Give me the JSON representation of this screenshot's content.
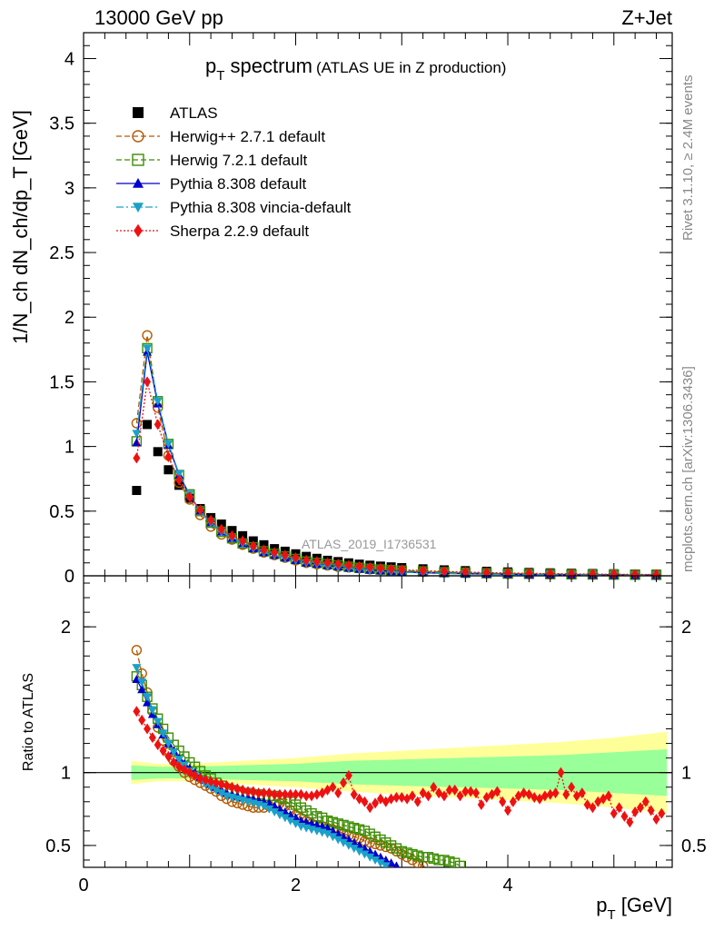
{
  "header": {
    "left": "13000 GeV pp",
    "right": "Z+Jet"
  },
  "side_labels": {
    "rivet": "Rivet 3.1.10, ≥ 2.4M events",
    "mcplots": "mcplots.cern.ch [arXiv:1306.3436]"
  },
  "watermark": "ATLAS_2019_I1736531",
  "chart_data": [
    {
      "type": "scatter",
      "title_main": "p",
      "title_sub": "T",
      "title_rest": " spectrum",
      "title_note": "(ATLAS UE in Z production)",
      "ylabel": "1/N_ch dN_ch/dp_T [GeV]",
      "ylim": [
        0,
        4.2
      ],
      "xlim": [
        0,
        5.55
      ],
      "y_ticks": [
        "0",
        "0.5",
        "1",
        "1.5",
        "2",
        "2.5",
        "3",
        "3.5",
        "4"
      ],
      "legend_placement": "top-left",
      "x": [
        0.5,
        0.6,
        0.7,
        0.8,
        0.9,
        1.0,
        1.1,
        1.2,
        1.3,
        1.4,
        1.5,
        1.6,
        1.7,
        1.8,
        1.9,
        2.0,
        2.1,
        2.2,
        2.3,
        2.4,
        2.5,
        2.6,
        2.7,
        2.8,
        2.9,
        3.0,
        3.2,
        3.4,
        3.6,
        3.8,
        4.0,
        4.2,
        4.4,
        4.6,
        4.8,
        5.0,
        5.2,
        5.4
      ],
      "series": [
        {
          "name": "ATLAS",
          "color": "#000000",
          "marker": "square-filled",
          "line": "none",
          "values": [
            0.66,
            1.17,
            0.96,
            0.82,
            0.7,
            0.6,
            0.52,
            0.45,
            0.4,
            0.35,
            0.31,
            0.27,
            0.24,
            0.21,
            0.19,
            0.17,
            0.15,
            0.135,
            0.12,
            0.11,
            0.1,
            0.09,
            0.082,
            0.075,
            0.069,
            0.063,
            0.054,
            0.046,
            0.04,
            0.035,
            0.03,
            0.026,
            0.023,
            0.02,
            0.018,
            0.016,
            0.014,
            0.013
          ]
        },
        {
          "name": "Herwig++ 2.7.1 default",
          "color": "#b35a00",
          "marker": "circle-open",
          "line": "dashed",
          "values": [
            1.18,
            1.86,
            1.3,
            0.93,
            0.72,
            0.59,
            0.47,
            0.38,
            0.32,
            0.28,
            0.24,
            0.21,
            0.18,
            0.16,
            0.14,
            0.12,
            0.1,
            0.09,
            0.08,
            0.07,
            0.065,
            0.058,
            0.05,
            0.045,
            0.04,
            0.036,
            0.03,
            0.025,
            0.021,
            0.018,
            0.015,
            0.013,
            0.011,
            0.01,
            0.009,
            0.008,
            0.007,
            0.006
          ]
        },
        {
          "name": "Herwig 7.2.1 default",
          "color": "#3c8d00",
          "marker": "square-open",
          "line": "dashed",
          "values": [
            1.04,
            1.76,
            1.35,
            1.02,
            0.78,
            0.63,
            0.5,
            0.41,
            0.34,
            0.29,
            0.25,
            0.22,
            0.19,
            0.17,
            0.15,
            0.13,
            0.11,
            0.1,
            0.09,
            0.08,
            0.07,
            0.062,
            0.055,
            0.049,
            0.044,
            0.04,
            0.034,
            0.028,
            0.024,
            0.02,
            0.017,
            0.015,
            0.013,
            0.011,
            0.01,
            0.009,
            0.008,
            0.007
          ]
        },
        {
          "name": "Pythia 8.308 default",
          "color": "#0000cc",
          "marker": "triangle-up-filled",
          "line": "solid",
          "values": [
            1.03,
            1.73,
            1.33,
            1.01,
            0.78,
            0.62,
            0.5,
            0.41,
            0.34,
            0.29,
            0.25,
            0.21,
            0.18,
            0.16,
            0.14,
            0.12,
            0.1,
            0.09,
            0.08,
            0.07,
            0.06,
            0.052,
            0.045,
            0.039,
            0.034,
            0.03,
            0.024,
            0.019,
            0.016,
            0.013,
            0.011,
            0.009,
            0.008,
            0.007,
            0.006,
            0.005,
            0.0045,
            0.004
          ]
        },
        {
          "name": "Pythia 8.308 vincia-default",
          "color": "#1ba1c8",
          "marker": "triangle-down-filled",
          "line": "dashdot",
          "values": [
            1.1,
            1.76,
            1.35,
            1.02,
            0.79,
            0.63,
            0.5,
            0.41,
            0.34,
            0.29,
            0.25,
            0.21,
            0.18,
            0.16,
            0.14,
            0.12,
            0.1,
            0.09,
            0.075,
            0.066,
            0.058,
            0.05,
            0.043,
            0.037,
            0.032,
            0.028,
            0.022,
            0.018,
            0.015,
            0.012,
            0.01,
            0.0085,
            0.0075,
            0.0065,
            0.0055,
            0.0048,
            0.0042,
            0.0037
          ]
        },
        {
          "name": "Sherpa 2.2.9 default",
          "color": "#ee1111",
          "marker": "diamond-filled",
          "line": "dotted",
          "values": [
            0.91,
            1.5,
            1.17,
            0.92,
            0.74,
            0.61,
            0.51,
            0.43,
            0.36,
            0.31,
            0.27,
            0.23,
            0.2,
            0.18,
            0.16,
            0.14,
            0.12,
            0.11,
            0.1,
            0.09,
            0.08,
            0.072,
            0.065,
            0.058,
            0.052,
            0.047,
            0.04,
            0.034,
            0.029,
            0.025,
            0.022,
            0.019,
            0.017,
            0.015,
            0.013,
            0.012,
            0.011,
            0.01
          ]
        }
      ]
    },
    {
      "type": "scatter",
      "ylabel": "Ratio to ATLAS",
      "xlabel_main": "p",
      "xlabel_sub": "T",
      "xlabel_rest": " [GeV]",
      "ylim": [
        0.35,
        2.35
      ],
      "xlim": [
        0,
        5.55
      ],
      "y_ticks": [
        "0.5",
        "1",
        "2"
      ],
      "x_ticks": [
        "0",
        "2",
        "4"
      ],
      "reference_line": 1,
      "band_x": [
        0.45,
        0.7,
        1.0,
        1.5,
        2.0,
        2.5,
        3.0,
        3.5,
        4.0,
        4.5,
        5.0,
        5.5
      ],
      "band_inner_halfwidth": [
        0.05,
        0.04,
        0.04,
        0.05,
        0.06,
        0.08,
        0.09,
        0.1,
        0.11,
        0.12,
        0.14,
        0.16
      ],
      "band_outer_halfwidth": [
        0.08,
        0.06,
        0.06,
        0.08,
        0.1,
        0.13,
        0.15,
        0.17,
        0.19,
        0.21,
        0.24,
        0.28
      ],
      "x": [
        0.5,
        0.55,
        0.6,
        0.65,
        0.7,
        0.75,
        0.8,
        0.85,
        0.9,
        0.95,
        1.0,
        1.05,
        1.1,
        1.15,
        1.2,
        1.25,
        1.3,
        1.35,
        1.4,
        1.45,
        1.5,
        1.55,
        1.6,
        1.65,
        1.7,
        1.75,
        1.8,
        1.85,
        1.9,
        1.95,
        2.0,
        2.05,
        2.1,
        2.15,
        2.2,
        2.25,
        2.3,
        2.35,
        2.4,
        2.45,
        2.5,
        2.55,
        2.6,
        2.65,
        2.7,
        2.75,
        2.8,
        2.85,
        2.9,
        2.95,
        3.0,
        3.05,
        3.1,
        3.15,
        3.2,
        3.25,
        3.3,
        3.35,
        3.4,
        3.45,
        3.5,
        3.55,
        3.6,
        3.65,
        3.7,
        3.75,
        3.8,
        3.85,
        3.9,
        3.95,
        4.0,
        4.05,
        4.1,
        4.15,
        4.2,
        4.25,
        4.3,
        4.35,
        4.4,
        4.45,
        4.5,
        4.55,
        4.6,
        4.65,
        4.7,
        4.75,
        4.8,
        4.85,
        4.9,
        4.95,
        5.0,
        5.05,
        5.1,
        5.15,
        5.2,
        5.25,
        5.3,
        5.35,
        5.4,
        5.45
      ],
      "series": [
        {
          "name": "Herwig++ 2.7.1 default",
          "color": "#b35a00",
          "marker": "circle-open",
          "line": "dashed",
          "values": [
            1.84,
            1.68,
            1.55,
            1.42,
            1.31,
            1.22,
            1.14,
            1.08,
            1.04,
            1.0,
            0.97,
            0.95,
            0.93,
            0.91,
            0.89,
            0.87,
            0.84,
            0.82,
            0.8,
            0.79,
            0.78,
            0.77,
            0.76,
            0.76,
            0.76,
            0.77,
            0.78,
            0.79,
            0.77,
            0.74,
            0.71,
            0.69,
            0.67,
            0.65,
            0.64,
            0.63,
            0.62,
            0.61,
            0.6,
            0.58,
            0.57,
            0.56,
            0.55,
            0.53,
            0.52,
            0.51,
            0.5,
            0.49,
            0.48,
            0.46,
            0.44,
            0.42,
            0.4,
            0.38,
            0.36,
            0.34,
            null,
            null,
            null,
            null,
            null,
            null,
            null,
            null,
            null,
            null,
            null,
            null,
            null,
            null,
            null,
            null,
            null,
            null,
            null,
            null,
            null,
            null,
            null,
            null,
            null,
            null,
            null,
            null,
            null,
            null,
            null,
            null,
            null,
            null,
            null,
            null,
            null,
            null,
            null,
            null,
            null,
            null,
            null,
            null
          ]
        },
        {
          "name": "Herwig 7.2.1 default",
          "color": "#3c8d00",
          "marker": "square-open",
          "line": "dashed",
          "values": [
            1.66,
            1.6,
            1.52,
            1.44,
            1.37,
            1.3,
            1.24,
            1.19,
            1.15,
            1.11,
            1.07,
            1.04,
            1.01,
            0.98,
            0.96,
            0.93,
            0.91,
            0.89,
            0.88,
            0.87,
            0.86,
            0.86,
            0.85,
            0.85,
            0.84,
            0.84,
            0.84,
            0.83,
            0.82,
            0.8,
            0.78,
            0.76,
            0.74,
            0.72,
            0.7,
            0.69,
            0.67,
            0.66,
            0.65,
            0.64,
            0.63,
            0.62,
            0.61,
            0.6,
            0.58,
            0.56,
            0.54,
            0.52,
            0.5,
            0.48,
            0.46,
            0.45,
            0.44,
            0.43,
            0.42,
            0.42,
            0.41,
            0.4,
            0.4,
            0.39,
            0.38,
            0.36,
            null,
            null,
            null,
            null,
            null,
            null,
            null,
            null,
            null,
            null,
            null,
            null,
            null,
            null,
            null,
            null,
            null,
            null,
            null,
            null,
            null,
            null,
            null,
            null,
            null,
            null,
            null,
            null,
            null,
            null,
            null,
            null,
            null,
            null,
            null,
            null,
            null,
            null
          ]
        },
        {
          "name": "Pythia 8.308 default",
          "color": "#0000cc",
          "marker": "triangle-up-filled",
          "line": "solid",
          "values": [
            1.64,
            1.57,
            1.48,
            1.4,
            1.33,
            1.26,
            1.2,
            1.15,
            1.1,
            1.06,
            1.03,
            1.0,
            0.97,
            0.95,
            0.92,
            0.9,
            0.88,
            0.86,
            0.85,
            0.84,
            0.83,
            0.83,
            0.82,
            0.81,
            0.8,
            0.79,
            0.77,
            0.75,
            0.73,
            0.71,
            0.69,
            0.67,
            0.66,
            0.65,
            0.64,
            0.63,
            0.62,
            0.6,
            0.58,
            0.56,
            0.54,
            0.52,
            0.5,
            0.48,
            0.46,
            0.44,
            0.42,
            0.4,
            0.38,
            0.36,
            null,
            null,
            null,
            null,
            null,
            null,
            null,
            null,
            null,
            null,
            null,
            null,
            null,
            null,
            null,
            null,
            null,
            null,
            null,
            null,
            null,
            null,
            null,
            null,
            null,
            null,
            null,
            null,
            null,
            null,
            null,
            null,
            null,
            null,
            null,
            null,
            null,
            null,
            null,
            null,
            null,
            null,
            null,
            null,
            null,
            null,
            null,
            null,
            null,
            null
          ]
        },
        {
          "name": "Pythia 8.308 vincia-default",
          "color": "#1ba1c8",
          "marker": "triangle-down-filled",
          "line": "dashdot",
          "values": [
            1.72,
            1.62,
            1.52,
            1.43,
            1.35,
            1.27,
            1.2,
            1.14,
            1.09,
            1.05,
            1.01,
            0.98,
            0.95,
            0.92,
            0.9,
            0.88,
            0.86,
            0.84,
            0.83,
            0.82,
            0.81,
            0.8,
            0.79,
            0.78,
            0.77,
            0.75,
            0.73,
            0.71,
            0.69,
            0.67,
            0.65,
            0.63,
            0.62,
            0.61,
            0.6,
            0.59,
            0.58,
            0.56,
            0.54,
            0.52,
            0.5,
            0.48,
            0.46,
            0.44,
            0.42,
            0.4,
            0.38,
            0.36,
            null,
            null,
            null,
            null,
            null,
            null,
            null,
            null,
            null,
            null,
            null,
            null,
            null,
            null,
            null,
            null,
            null,
            null,
            null,
            null,
            null,
            null,
            null,
            null,
            null,
            null,
            null,
            null,
            null,
            null,
            null,
            null,
            null,
            null,
            null,
            null,
            null,
            null,
            null,
            null,
            null,
            null,
            null,
            null,
            null,
            null,
            null,
            null,
            null,
            null,
            null,
            null
          ]
        },
        {
          "name": "Sherpa 2.2.9 default",
          "color": "#ee1111",
          "marker": "diamond-filled",
          "line": "dotted",
          "values": [
            1.42,
            1.36,
            1.3,
            1.24,
            1.19,
            1.15,
            1.11,
            1.07,
            1.04,
            1.02,
            1.0,
            0.98,
            0.96,
            0.95,
            0.94,
            0.93,
            0.92,
            0.91,
            0.9,
            0.89,
            0.88,
            0.87,
            0.87,
            0.86,
            0.86,
            0.86,
            0.85,
            0.85,
            0.85,
            0.85,
            0.85,
            0.85,
            0.84,
            0.84,
            0.85,
            0.86,
            0.88,
            0.9,
            0.86,
            0.93,
            0.98,
            0.85,
            0.82,
            0.8,
            0.76,
            0.79,
            0.82,
            0.8,
            0.82,
            0.83,
            0.83,
            0.82,
            0.84,
            0.8,
            0.86,
            0.84,
            0.9,
            0.86,
            0.84,
            0.88,
            0.88,
            0.84,
            0.87,
            0.87,
            0.86,
            0.78,
            0.83,
            0.85,
            0.87,
            0.8,
            0.74,
            0.8,
            0.84,
            0.86,
            0.85,
            0.83,
            0.82,
            0.84,
            0.85,
            0.86,
            1.0,
            0.85,
            0.9,
            0.84,
            0.86,
            0.78,
            0.76,
            0.8,
            0.82,
            0.84,
            0.72,
            0.76,
            0.7,
            0.66,
            0.73,
            0.76,
            0.8,
            0.74,
            0.68,
            0.72
          ]
        }
      ]
    }
  ]
}
